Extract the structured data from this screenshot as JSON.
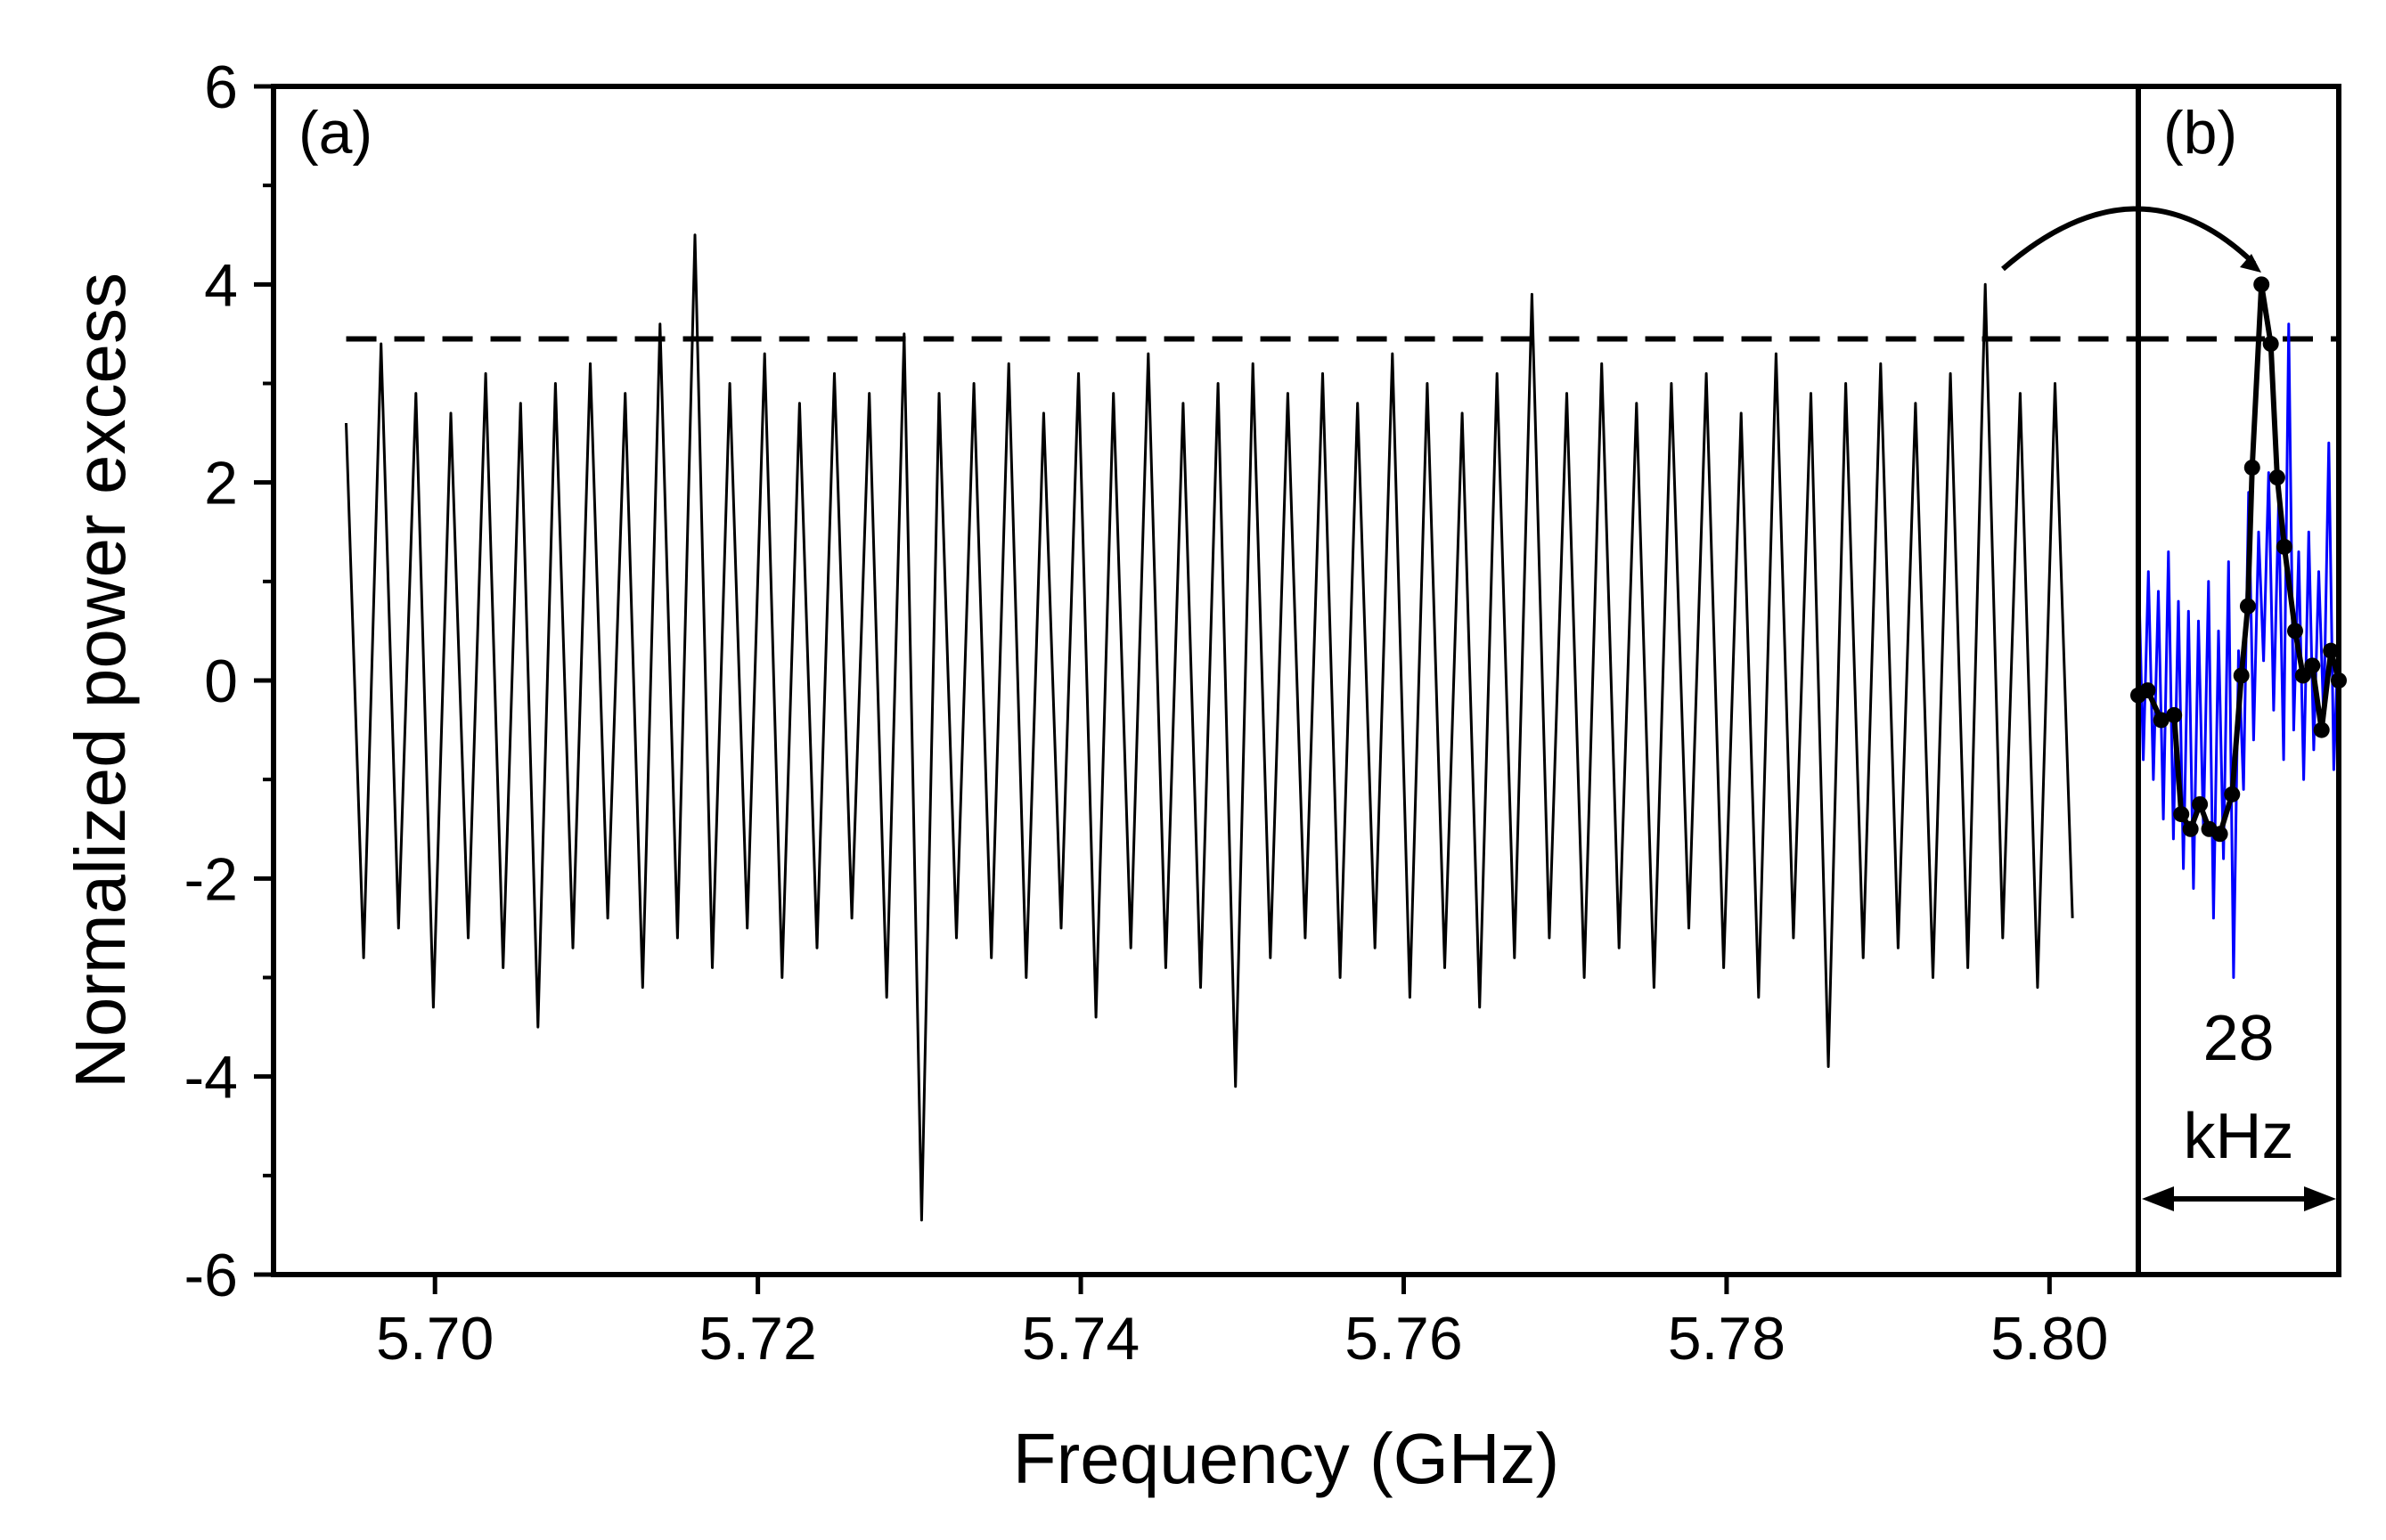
{
  "chart_data": [
    {
      "type": "line",
      "label": "(a)",
      "xlabel": "Frequency (GHz)",
      "ylabel": "Normalized power excess",
      "color": "#000000",
      "x": [
        5.6945,
        5.69558,
        5.69666,
        5.69774,
        5.69882,
        5.6999,
        5.70098,
        5.70206,
        5.70314,
        5.70422,
        5.7053,
        5.70638,
        5.70746,
        5.70854,
        5.70962,
        5.7107,
        5.71178,
        5.71286,
        5.71394,
        5.71502,
        5.7161,
        5.71718,
        5.71826,
        5.71934,
        5.72042,
        5.7215,
        5.72258,
        5.72366,
        5.72474,
        5.72582,
        5.7269,
        5.72798,
        5.72906,
        5.73014,
        5.73122,
        5.7323,
        5.73338,
        5.73446,
        5.73554,
        5.73662,
        5.7377,
        5.73878,
        5.73986,
        5.74094,
        5.74202,
        5.7431,
        5.74418,
        5.74526,
        5.74634,
        5.74742,
        5.7485,
        5.74958,
        5.75066,
        5.75174,
        5.75282,
        5.7539,
        5.75498,
        5.75606,
        5.75714,
        5.75822,
        5.7593,
        5.76038,
        5.76146,
        5.76254,
        5.76362,
        5.7647,
        5.76578,
        5.76686,
        5.76794,
        5.76902,
        5.7701,
        5.77118,
        5.77226,
        5.77334,
        5.77442,
        5.7755,
        5.77658,
        5.77766,
        5.77874,
        5.77982,
        5.7809,
        5.78198,
        5.78306,
        5.78414,
        5.78522,
        5.7863,
        5.78738,
        5.78846,
        5.78954,
        5.79062,
        5.7917,
        5.79278,
        5.79386,
        5.79494,
        5.79602,
        5.7971,
        5.79818,
        5.79926,
        5.80034,
        5.80142
      ],
      "values": [
        2.6,
        -2.8,
        3.4,
        -2.5,
        2.9,
        -3.3,
        2.7,
        -2.6,
        3.1,
        -2.9,
        2.8,
        -3.5,
        3.0,
        -2.7,
        3.2,
        -2.4,
        2.9,
        -3.1,
        3.6,
        -2.6,
        4.5,
        -2.9,
        3.0,
        -2.5,
        3.3,
        -3.0,
        2.8,
        -2.7,
        3.1,
        -2.4,
        2.9,
        -3.2,
        3.5,
        -5.45,
        2.9,
        -2.6,
        3.0,
        -2.8,
        3.2,
        -3.0,
        2.7,
        -2.5,
        3.1,
        -3.4,
        2.9,
        -2.7,
        3.3,
        -2.9,
        2.8,
        -3.1,
        3.0,
        -4.1,
        3.2,
        -2.8,
        2.9,
        -2.6,
        3.1,
        -3.0,
        2.8,
        -2.7,
        3.3,
        -3.2,
        3.0,
        -2.9,
        2.7,
        -3.3,
        3.1,
        -2.8,
        3.9,
        -2.6,
        2.9,
        -3.0,
        3.2,
        -2.7,
        2.8,
        -3.1,
        3.0,
        -2.5,
        3.1,
        -2.9,
        2.7,
        -3.2,
        3.3,
        -2.6,
        2.9,
        -3.9,
        3.0,
        -2.8,
        3.2,
        -2.7,
        2.8,
        -3.0,
        3.1,
        -2.9,
        4.0,
        -2.6,
        2.9,
        -3.1,
        3.0,
        -2.4
      ],
      "xlim": [
        5.69,
        5.8055
      ],
      "ylim": [
        -6,
        6
      ],
      "xticks": [
        {
          "value": 5.7,
          "label": "5.70"
        },
        5.72,
        5.74,
        5.76,
        5.78,
        {
          "value": 5.8,
          "label": "5.80"
        }
      ],
      "yticks": [
        -6,
        -4,
        -2,
        0,
        2,
        4,
        6
      ],
      "yminor": [
        -5,
        -3,
        -1,
        1,
        3,
        5
      ],
      "threshold": 3.45
    },
    {
      "type": "line",
      "label": "(b)",
      "annotation": [
        "28",
        "kHz"
      ],
      "xlim": [
        0,
        28
      ],
      "ylim": [
        -6,
        6
      ],
      "threshold": 3.45,
      "series": [
        {
          "color": "#0000ff",
          "x": [
            0,
            0.7,
            1.4,
            2.1,
            2.8,
            3.5,
            4.2,
            4.9,
            5.6,
            6.3,
            7,
            7.7,
            8.4,
            9.1,
            9.8,
            10.5,
            11.2,
            11.9,
            12.6,
            13.3,
            14,
            14.7,
            15.4,
            16.1,
            16.8,
            17.5,
            18.2,
            18.9,
            19.6,
            20.3,
            21,
            21.7,
            22.4,
            23.1,
            23.8,
            24.5,
            25.2,
            25.9,
            26.6,
            27.3,
            28
          ],
          "values": [
            1.2,
            -0.8,
            1.1,
            -1.0,
            0.9,
            -1.4,
            1.3,
            -1.6,
            0.8,
            -1.9,
            0.7,
            -2.1,
            0.6,
            -1.5,
            1.0,
            -2.4,
            0.5,
            -1.8,
            1.2,
            -3.0,
            0.3,
            -1.1,
            1.9,
            -0.6,
            1.5,
            0.2,
            2.1,
            -0.3,
            1.8,
            -0.8,
            3.6,
            -0.5,
            1.3,
            -1.0,
            1.5,
            -0.7,
            1.1,
            -0.4,
            2.4,
            -0.9,
            0.6
          ]
        },
        {
          "color": "#000000",
          "markers": true,
          "x": [
            0,
            1.3,
            3.2,
            5.0,
            6.0,
            7.3,
            8.6,
            9.9,
            11.4,
            13.1,
            14.4,
            15.3,
            15.9,
            17.2,
            18.5,
            19.4,
            20.4,
            21.9,
            23.0,
            24.3,
            25.6,
            26.9,
            28.0
          ],
          "values": [
            -0.15,
            -0.1,
            -0.4,
            -0.35,
            -1.35,
            -1.5,
            -1.25,
            -1.5,
            -1.55,
            -1.15,
            0.05,
            0.75,
            2.15,
            4.0,
            3.4,
            2.05,
            1.35,
            0.5,
            0.05,
            0.15,
            -0.5,
            0.3,
            0.0
          ]
        }
      ]
    }
  ]
}
